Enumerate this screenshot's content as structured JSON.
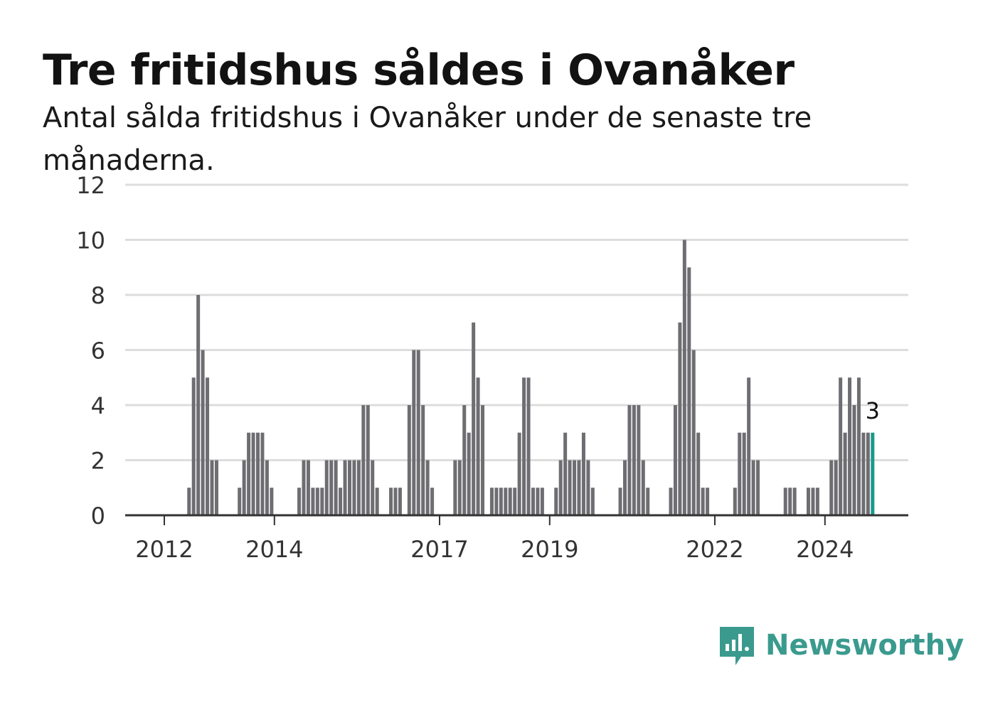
{
  "header": {
    "title": "Tre fritidshus såldes i Ovanåker",
    "subtitle": "Antal sålda fritidshus i Ovanåker under de senaste tre månaderna."
  },
  "brand": {
    "name": "Newsworthy",
    "icon": "newsworthy-logo-icon",
    "color": "#3a9a8e"
  },
  "colors": {
    "bar": "#6e6e72",
    "highlight": "#1a9a8a",
    "grid": "#dddddd",
    "axis": "#333333"
  },
  "chart_data": {
    "type": "bar",
    "ylim": [
      0,
      12
    ],
    "yticks": [
      0,
      2,
      4,
      6,
      8,
      10,
      12
    ],
    "xticks": [
      {
        "label": "2012",
        "index": 0
      },
      {
        "label": "2014",
        "index": 24
      },
      {
        "label": "2017",
        "index": 60
      },
      {
        "label": "2019",
        "index": 84
      },
      {
        "label": "2022",
        "index": 120
      },
      {
        "label": "2024",
        "index": 144
      }
    ],
    "start_month": "2012-01",
    "values": [
      0,
      0,
      0,
      0,
      0,
      1,
      5,
      8,
      6,
      5,
      2,
      2,
      0,
      0,
      0,
      0,
      1,
      2,
      3,
      3,
      3,
      3,
      2,
      1,
      0,
      0,
      0,
      0,
      0,
      1,
      2,
      2,
      1,
      1,
      1,
      2,
      2,
      2,
      1,
      2,
      2,
      2,
      2,
      4,
      4,
      2,
      1,
      0,
      0,
      1,
      1,
      1,
      0,
      4,
      6,
      6,
      4,
      2,
      1,
      0,
      0,
      0,
      0,
      2,
      2,
      4,
      3,
      7,
      5,
      4,
      0,
      1,
      1,
      1,
      1,
      1,
      1,
      3,
      5,
      5,
      1,
      1,
      1,
      0,
      0,
      1,
      2,
      3,
      2,
      2,
      2,
      3,
      2,
      1,
      0,
      0,
      0,
      0,
      0,
      1,
      2,
      4,
      4,
      4,
      2,
      1,
      0,
      0,
      0,
      0,
      1,
      4,
      7,
      10,
      9,
      6,
      3,
      1,
      1,
      0,
      0,
      0,
      0,
      0,
      1,
      3,
      3,
      5,
      2,
      2,
      0,
      0,
      0,
      0,
      0,
      1,
      1,
      1,
      0,
      0,
      1,
      1,
      1,
      0,
      0,
      2,
      2,
      5,
      3,
      5,
      4,
      5,
      3,
      3,
      3
    ],
    "highlight_last": true,
    "highlight_label": "3"
  }
}
